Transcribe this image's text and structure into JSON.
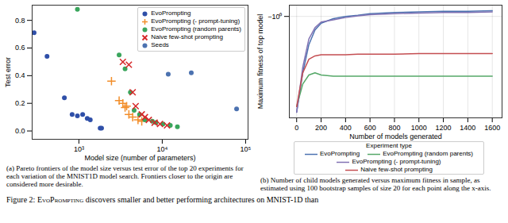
{
  "chart_data": [
    {
      "type": "scatter",
      "x_label": "Model size (number of parameters)",
      "y_label": "Test error",
      "log": "x",
      "grid": false,
      "legend": "upper right",
      "xlim": [
        275,
        107000
      ],
      "xticks": [
        {
          "value": 1000,
          "label": "10³"
        },
        {
          "value": 10000,
          "label": "10⁴"
        },
        {
          "value": 100000,
          "label": "10⁵"
        }
      ],
      "ylim": [
        -0.06,
        0.91
      ],
      "yticks": [
        {
          "value": 0,
          "label": "0.0"
        },
        {
          "value": 0.2,
          "label": "0.2"
        },
        {
          "value": 0.4,
          "label": "0.4"
        },
        {
          "value": 0.6,
          "label": "0.6"
        },
        {
          "value": 0.8,
          "label": "0.8"
        }
      ],
      "series": [
        {
          "name": "EvoPrompting",
          "color": "#2f4fa8",
          "marker": "circle",
          "x": [
            290,
            415,
            670,
            830,
            960,
            1110,
            1260,
            1370,
            1800,
            1870
          ],
          "values": [
            0.71,
            0.54,
            0.24,
            0.12,
            0.11,
            0.12,
            0.09,
            0.08,
            0.02,
            0.02
          ]
        },
        {
          "name": "EvoPrompting (- prompt-tuning)",
          "color": "#f28e2b",
          "marker": "plus",
          "x": [
            2460,
            3040,
            3370,
            3580,
            3740,
            3980,
            4420,
            5120,
            5680
          ],
          "values": [
            0.36,
            0.22,
            0.2,
            0.17,
            0.18,
            0.12,
            0.1,
            0.08,
            0.07
          ]
        },
        {
          "name": "EvoPrompting (random parents)",
          "color": "#3aa55c",
          "marker": "circle",
          "x": [
            960,
            3040,
            3580,
            4150,
            4600,
            5350,
            6200,
            7600,
            8400,
            10200,
            12500,
            15200
          ],
          "values": [
            0.88,
            0.55,
            0.45,
            0.28,
            0.15,
            0.12,
            0.08,
            0.07,
            0.06,
            0.05,
            0.04,
            0.03
          ]
        },
        {
          "name": "Naive few-shot prompting",
          "color": "#d62728",
          "marker": "x",
          "x": [
            3370,
            3980,
            4420,
            4800,
            5680,
            6200,
            6900,
            8100,
            9400,
            11400
          ],
          "values": [
            0.5,
            0.48,
            0.28,
            0.18,
            0.12,
            0.1,
            0.08,
            0.06,
            0.05,
            0.04
          ]
        },
        {
          "name": "Seeds",
          "color": "#4c72b0",
          "marker": "circle",
          "x": [
            11800,
            22300,
            78000
          ],
          "values": [
            0.41,
            0.42,
            0.16
          ]
        }
      ],
      "caption": "(a) Pareto frontiers of the model size versus test error of the top 20 experiments for each variation of the MNIST1D model search. Frontiers closer to the origin are considered more desirable."
    },
    {
      "type": "line",
      "x_label": "Number of models generated",
      "y_label": "Maximum fitness of top model",
      "grid": true,
      "legend": "bottom",
      "legend_title": "Experiment type",
      "xlim": [
        -60,
        1680
      ],
      "xticks": [
        0,
        200,
        400,
        600,
        800,
        1000,
        1200,
        1400,
        1600
      ],
      "ylim": [
        -1.9,
        -0.9
      ],
      "yticks": [
        {
          "value": -1,
          "label": "−10⁰"
        }
      ],
      "x": [
        0,
        50,
        100,
        150,
        200,
        300,
        400,
        500,
        600,
        800,
        1000,
        1200,
        1400,
        1600
      ],
      "series": [
        {
          "name": "EvoPrompting",
          "color": "#4c72b0",
          "values": [
            -1.85,
            -1.5,
            -1.25,
            -1.12,
            -1.06,
            -1.02,
            -1.0,
            -0.99,
            -0.975,
            -0.965,
            -0.96,
            -0.955,
            -0.955,
            -0.95
          ]
        },
        {
          "name": "EvoPrompting (random parents)",
          "color": "#55a868",
          "values": [
            -1.8,
            -1.6,
            -1.52,
            -1.5,
            -1.52,
            -1.53,
            -1.53,
            -1.53,
            -1.53,
            -1.53,
            -1.53,
            -1.53,
            -1.53,
            -1.53
          ]
        },
        {
          "name": "EvoPrompting (- prompt-tuning)",
          "color": "#8172b3",
          "values": [
            -1.85,
            -1.45,
            -1.2,
            -1.1,
            -1.05,
            -1.03,
            -1.01,
            -0.995,
            -0.985,
            -0.975,
            -0.97,
            -0.965,
            -0.965,
            -0.96
          ]
        },
        {
          "name": "Naive few-shot prompting",
          "color": "#c44e52",
          "values": [
            -1.8,
            -1.5,
            -1.38,
            -1.35,
            -1.34,
            -1.34,
            -1.34,
            -1.335,
            -1.335,
            -1.335,
            -1.33,
            -1.33,
            -1.33,
            -1.33
          ]
        }
      ],
      "caption": "(b) Number of child models generated versus maximum fitness in sample, as estimated using 100 bootstrap samples of size 20 for each point along the x-axis."
    }
  ],
  "caption": {
    "prefix": "Figure 2: ",
    "name": "EvoPrompting",
    "rest": " discovers smaller and better performing architectures on MNIST-1D than"
  }
}
